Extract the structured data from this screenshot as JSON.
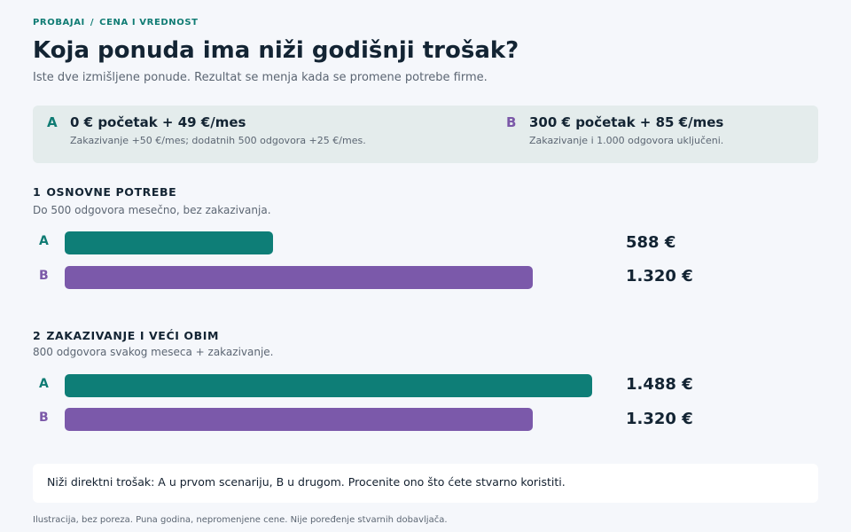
{
  "breadcrumb": {
    "part1": "PROBAJAI",
    "separator": "/",
    "part2": "CENA I VREDNOST"
  },
  "title": "Koja ponuda ima niži godišnji trošak?",
  "subtitle": "Iste dve izmišljene ponude. Rezultat se menja kada se promene potrebe firme.",
  "offers": {
    "a": {
      "letter": "A",
      "head": "0 € početak + 49 €/mes",
      "note": "Zakazivanje +50 €/mes; dodatnih 500 odgovora +25 €/mes."
    },
    "b": {
      "letter": "B",
      "head": "300 € početak + 85 €/mes",
      "note": "Zakazivanje i 1.000 odgovora uključeni."
    }
  },
  "chart_data": [
    {
      "type": "bar",
      "orientation": "horizontal",
      "section_number": "1",
      "title": "OSNOVNE POTREBE",
      "subtitle": "Do 500 odgovora mesečno, bez zakazivanja.",
      "categories": [
        "A",
        "B"
      ],
      "values": [
        588,
        1320
      ],
      "value_labels": [
        "588 €",
        "1.320 €"
      ],
      "colors": [
        "#0e7e77",
        "#7b59aa"
      ],
      "xlim": [
        0,
        1700
      ]
    },
    {
      "type": "bar",
      "orientation": "horizontal",
      "section_number": "2",
      "title": "ZAKAZIVANJE I VEĆI OBIM",
      "subtitle": "800 odgovora svakog meseca + zakazivanje.",
      "categories": [
        "A",
        "B"
      ],
      "values": [
        1488,
        1320
      ],
      "value_labels": [
        "1.488 €",
        "1.320 €"
      ],
      "colors": [
        "#0e7e77",
        "#7b59aa"
      ],
      "xlim": [
        0,
        1700
      ]
    }
  ],
  "conclusion": "Niži direktni trošak: A u prvom scenariju, B u drugom. Procenite ono što ćete stvarno koristiti.",
  "footnote": "Ilustracija, bez poreza. Puna godina, nepromenjene cene. Nije poređenje stvarnih dobavljača."
}
